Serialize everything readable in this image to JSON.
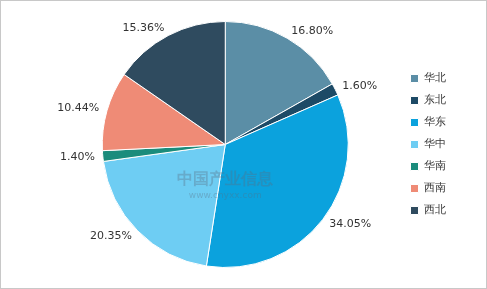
{
  "chart_data": {
    "type": "pie",
    "categories": [
      "华北",
      "东北",
      "华东",
      "华中",
      "华南",
      "西南",
      "西北"
    ],
    "values": [
      16.8,
      1.6,
      34.05,
      20.35,
      1.4,
      10.44,
      15.36
    ],
    "value_labels": [
      "16.80%",
      "1.60%",
      "34.05%",
      "20.35%",
      "1.40%",
      "10.44%",
      "15.36%"
    ],
    "colors": [
      "#5b8ea6",
      "#1d4a66",
      "#0ba2dd",
      "#6ecdf3",
      "#1b8c7c",
      "#ef8b76",
      "#2f4b5f"
    ],
    "data_labels": true,
    "legend": "right",
    "annotations": [
      "中国产业信息",
      "www.chyxx.com"
    ]
  }
}
